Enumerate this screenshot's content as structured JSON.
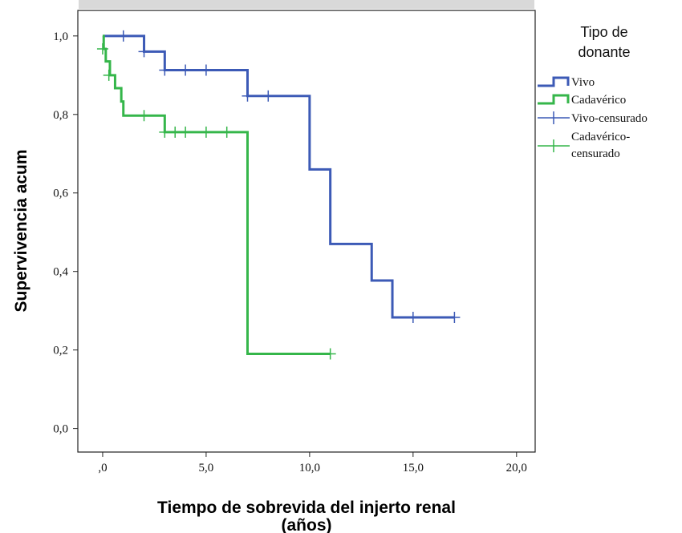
{
  "chart_data": {
    "type": "line",
    "step": true,
    "title": "",
    "xlabel": "Tiempo de sobrevida del injerto renal",
    "xlabel_line2": "(años)",
    "ylabel": "Supervivencia acum",
    "xlim": [
      -1.2,
      20.9
    ],
    "ylim": [
      -0.06,
      1.065
    ],
    "xticks": [
      0,
      5,
      10,
      15,
      20
    ],
    "xtick_labels": [
      ",0",
      "5,0",
      "10,0",
      "15,0",
      "20,0"
    ],
    "yticks": [
      0,
      0.2,
      0.4,
      0.6,
      0.8,
      1.0
    ],
    "ytick_labels": [
      "0,0",
      "0,2",
      "0,4",
      "0,6",
      "0,8",
      "1,0"
    ],
    "grid": false,
    "legend": {
      "title": "Tipo de donante",
      "title_lines": [
        "Tipo de",
        "donante"
      ],
      "placement": "right",
      "entries": [
        {
          "label": "Vivo",
          "kind": "step",
          "series": 0
        },
        {
          "label": "Cadavérico",
          "kind": "step",
          "series": 1
        },
        {
          "label": "Vivo-censurado",
          "kind": "censor",
          "series": 0
        },
        {
          "label": "Cadavérico-censurado",
          "kind": "censor",
          "series": 1,
          "lines": [
            "Cadavérico-",
            "censurado"
          ]
        }
      ]
    },
    "series": [
      {
        "name": "Vivo",
        "color": "#3c5ab6",
        "steps": [
          [
            0,
            1.0
          ],
          [
            2,
            0.96
          ],
          [
            3,
            0.913
          ],
          [
            7,
            0.847
          ],
          [
            10,
            0.66
          ],
          [
            11,
            0.47
          ],
          [
            13,
            0.377
          ],
          [
            14,
            0.283
          ],
          [
            17,
            0.283
          ]
        ],
        "censored": [
          [
            1,
            1.0
          ],
          [
            2,
            0.96
          ],
          [
            3,
            0.913
          ],
          [
            4,
            0.913
          ],
          [
            5,
            0.913
          ],
          [
            7,
            0.847
          ],
          [
            8,
            0.847
          ],
          [
            15,
            0.283
          ],
          [
            17,
            0.283
          ]
        ]
      },
      {
        "name": "Cadavérico",
        "color": "#35b64a",
        "steps": [
          [
            0,
            1.0
          ],
          [
            0.05,
            0.967
          ],
          [
            0.15,
            0.935
          ],
          [
            0.35,
            0.9
          ],
          [
            0.6,
            0.867
          ],
          [
            0.9,
            0.833
          ],
          [
            1.0,
            0.797
          ],
          [
            3.0,
            0.755
          ],
          [
            7.0,
            0.19
          ],
          [
            11,
            0.19
          ]
        ],
        "censored": [
          [
            0,
            0.967
          ],
          [
            0.3,
            0.9
          ],
          [
            2,
            0.797
          ],
          [
            3,
            0.755
          ],
          [
            3.5,
            0.755
          ],
          [
            4,
            0.755
          ],
          [
            5,
            0.755
          ],
          [
            6,
            0.755
          ],
          [
            11,
            0.19
          ]
        ]
      }
    ]
  }
}
